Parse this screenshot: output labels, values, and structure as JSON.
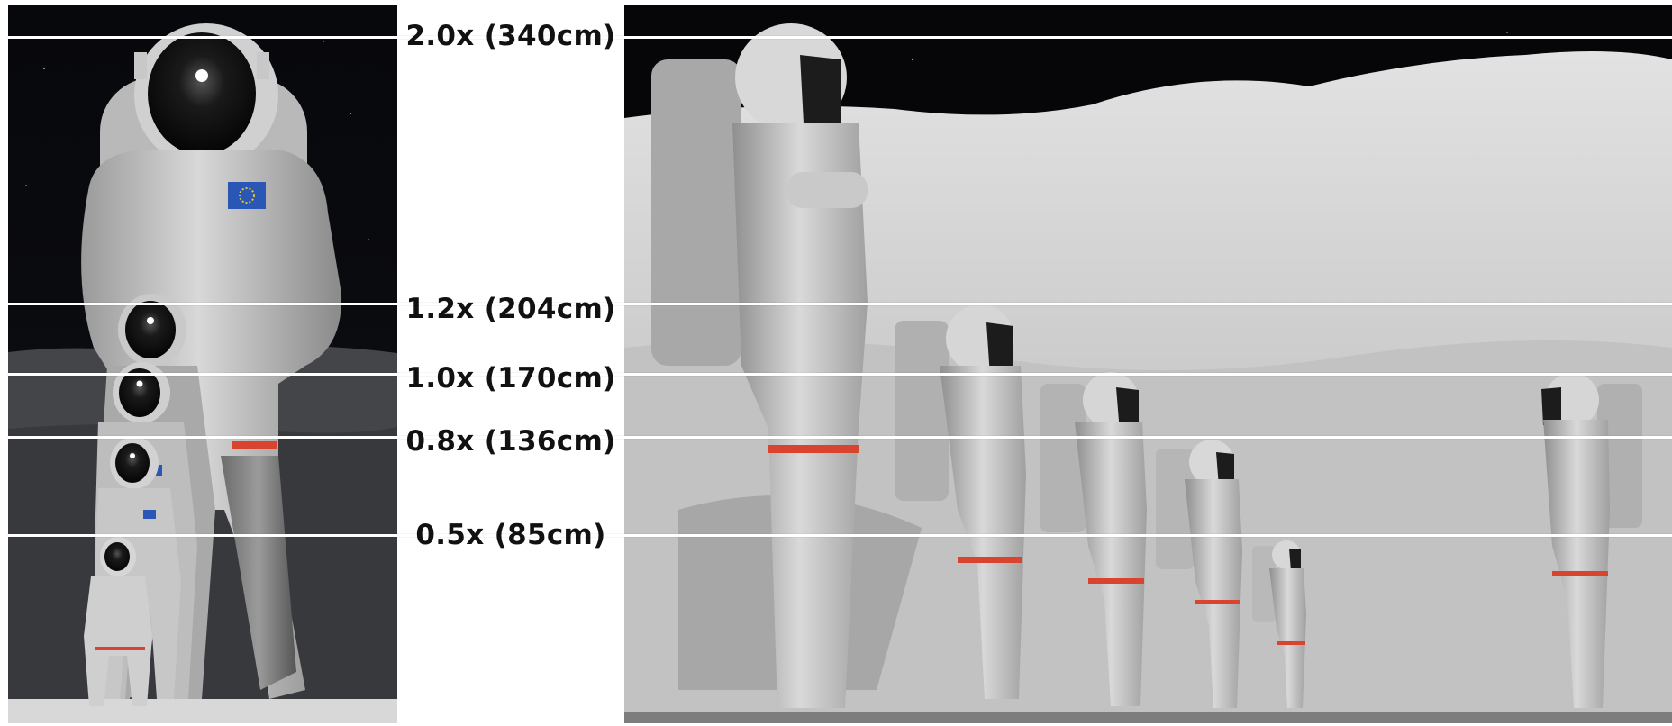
{
  "scale_markers": [
    {
      "label": "2.0x (340cm)"
    },
    {
      "label": "1.2x (204cm)"
    },
    {
      "label": "1.0x (170cm)"
    },
    {
      "label": "0.8x (136cm)"
    },
    {
      "label": "0.5x (85cm)"
    }
  ],
  "colors": {
    "space": "#07080c",
    "suit": "#d9d9d9",
    "visor": "#141414",
    "leg_stripe": "#d9442f",
    "flag": "#2a57b5",
    "lunar_surface": "#cfcfcf",
    "marker_line": "#ffffff",
    "label_text": "#111111"
  }
}
